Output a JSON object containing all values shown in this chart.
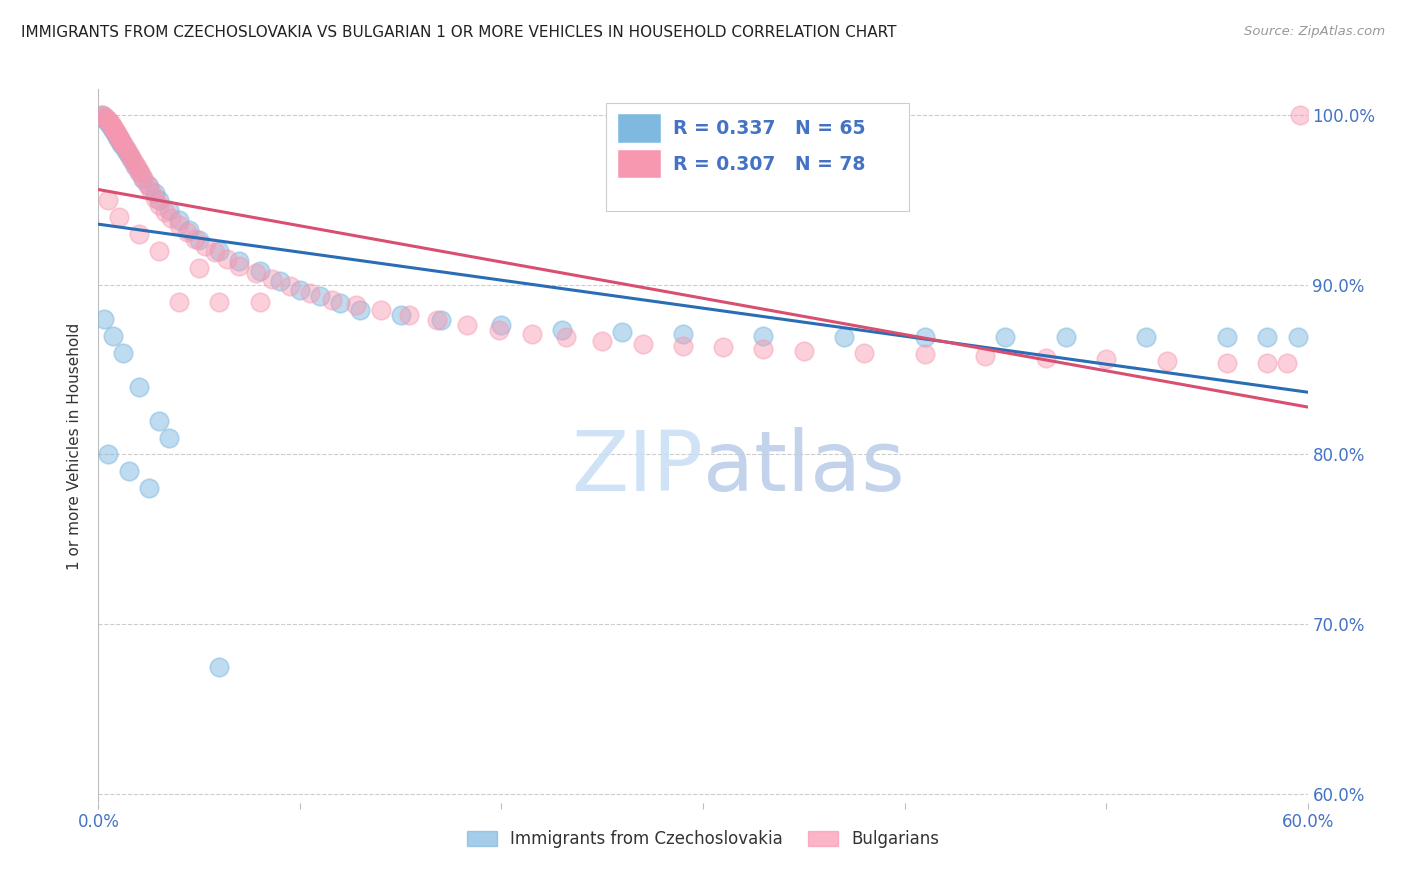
{
  "title": "IMMIGRANTS FROM CZECHOSLOVAKIA VS BULGARIAN 1 OR MORE VEHICLES IN HOUSEHOLD CORRELATION CHART",
  "source": "Source: ZipAtlas.com",
  "ylabel": "1 or more Vehicles in Household",
  "legend_label_1": "Immigrants from Czechoslovakia",
  "legend_label_2": "Bulgarians",
  "R1": 0.337,
  "N1": 65,
  "R2": 0.307,
  "N2": 78,
  "color1": "#7fb9e0",
  "color2": "#f897b0",
  "trendline1_color": "#2a6db5",
  "trendline2_color": "#d94f70",
  "background_color": "#ffffff",
  "xmin": 0.0,
  "xmax": 0.6,
  "ymin": 0.595,
  "ymax": 1.015,
  "x_ticks": [
    0.0,
    0.1,
    0.2,
    0.3,
    0.4,
    0.5,
    0.6
  ],
  "x_tick_labels": [
    "0.0%",
    "",
    "",
    "",
    "",
    "",
    "60.0%"
  ],
  "y_ticks": [
    0.6,
    0.7,
    0.8,
    0.9,
    1.0
  ],
  "y_tick_labels_right": [
    "60.0%",
    "70.0%",
    "80.0%",
    "90.0%",
    "100.0%"
  ],
  "cs_x": [
    0.002,
    0.003,
    0.004,
    0.005,
    0.005,
    0.006,
    0.006,
    0.007,
    0.007,
    0.008,
    0.008,
    0.009,
    0.009,
    0.01,
    0.01,
    0.011,
    0.011,
    0.012,
    0.013,
    0.014,
    0.015,
    0.016,
    0.018,
    0.02,
    0.022,
    0.025,
    0.028,
    0.03,
    0.035,
    0.04,
    0.045,
    0.05,
    0.06,
    0.07,
    0.08,
    0.09,
    0.1,
    0.11,
    0.12,
    0.13,
    0.15,
    0.17,
    0.2,
    0.23,
    0.26,
    0.29,
    0.33,
    0.37,
    0.41,
    0.45,
    0.48,
    0.52,
    0.56,
    0.58,
    0.595,
    0.003,
    0.007,
    0.012,
    0.02,
    0.03,
    0.005,
    0.015,
    0.025,
    0.035,
    0.06
  ],
  "cs_y": [
    1.0,
    0.998,
    0.997,
    0.996,
    0.995,
    0.994,
    0.993,
    0.992,
    0.991,
    0.99,
    0.989,
    0.988,
    0.987,
    0.986,
    0.985,
    0.984,
    0.983,
    0.982,
    0.98,
    0.978,
    0.976,
    0.974,
    0.97,
    0.966,
    0.962,
    0.958,
    0.954,
    0.95,
    0.944,
    0.938,
    0.932,
    0.926,
    0.92,
    0.914,
    0.908,
    0.902,
    0.897,
    0.893,
    0.889,
    0.885,
    0.882,
    0.879,
    0.876,
    0.873,
    0.872,
    0.871,
    0.87,
    0.869,
    0.869,
    0.869,
    0.869,
    0.869,
    0.869,
    0.869,
    0.869,
    0.88,
    0.87,
    0.86,
    0.84,
    0.82,
    0.8,
    0.79,
    0.78,
    0.81,
    0.675
  ],
  "bg_x": [
    0.002,
    0.003,
    0.004,
    0.005,
    0.005,
    0.006,
    0.006,
    0.007,
    0.007,
    0.008,
    0.008,
    0.009,
    0.009,
    0.01,
    0.01,
    0.011,
    0.011,
    0.012,
    0.013,
    0.014,
    0.015,
    0.016,
    0.017,
    0.018,
    0.019,
    0.02,
    0.021,
    0.022,
    0.024,
    0.026,
    0.028,
    0.03,
    0.033,
    0.036,
    0.04,
    0.044,
    0.048,
    0.053,
    0.058,
    0.064,
    0.07,
    0.078,
    0.086,
    0.095,
    0.105,
    0.116,
    0.128,
    0.14,
    0.154,
    0.168,
    0.183,
    0.199,
    0.215,
    0.232,
    0.25,
    0.27,
    0.29,
    0.31,
    0.33,
    0.35,
    0.38,
    0.41,
    0.44,
    0.47,
    0.5,
    0.53,
    0.56,
    0.58,
    0.59,
    0.596,
    0.005,
    0.01,
    0.02,
    0.03,
    0.05,
    0.04,
    0.06,
    0.08
  ],
  "bg_y": [
    1.0,
    0.999,
    0.998,
    0.997,
    0.996,
    0.995,
    0.994,
    0.993,
    0.992,
    0.991,
    0.99,
    0.989,
    0.988,
    0.987,
    0.986,
    0.985,
    0.984,
    0.983,
    0.981,
    0.979,
    0.977,
    0.975,
    0.973,
    0.971,
    0.969,
    0.967,
    0.965,
    0.963,
    0.959,
    0.955,
    0.951,
    0.947,
    0.943,
    0.939,
    0.935,
    0.931,
    0.927,
    0.923,
    0.919,
    0.915,
    0.911,
    0.907,
    0.903,
    0.899,
    0.895,
    0.891,
    0.888,
    0.885,
    0.882,
    0.879,
    0.876,
    0.873,
    0.871,
    0.869,
    0.867,
    0.865,
    0.864,
    0.863,
    0.862,
    0.861,
    0.86,
    0.859,
    0.858,
    0.857,
    0.856,
    0.855,
    0.854,
    0.854,
    0.854,
    1.0,
    0.95,
    0.94,
    0.93,
    0.92,
    0.91,
    0.89,
    0.89,
    0.89
  ]
}
